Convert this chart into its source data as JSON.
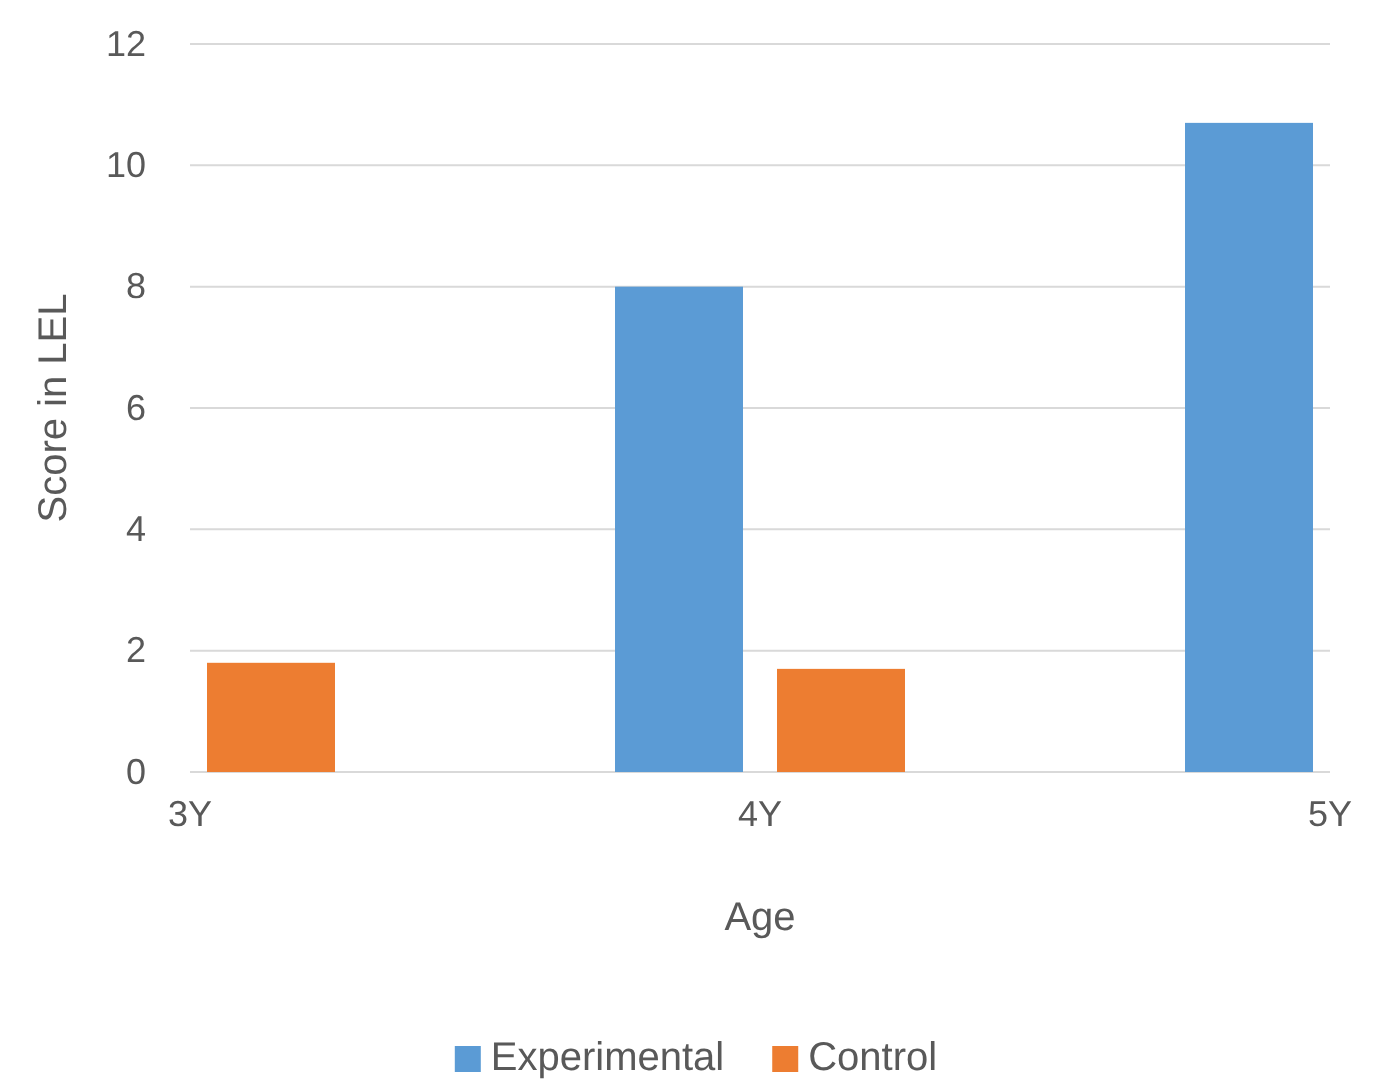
{
  "chart_data": {
    "type": "bar",
    "xlabel": "Age",
    "ylabel": "Score in LEL",
    "categories": [
      "3Y",
      "4Y",
      "5Y"
    ],
    "series": [
      {
        "name": "Experimental",
        "color": "#5b9bd5",
        "values": [
          null,
          8.0,
          10.7
        ]
      },
      {
        "name": "Control",
        "color": "#ed7d31",
        "values": [
          1.8,
          1.7,
          null
        ]
      }
    ],
    "ylim": [
      0,
      12
    ],
    "yticks": [
      0,
      2,
      4,
      6,
      8,
      10,
      12
    ],
    "grid": "y",
    "legend": "bottom"
  }
}
